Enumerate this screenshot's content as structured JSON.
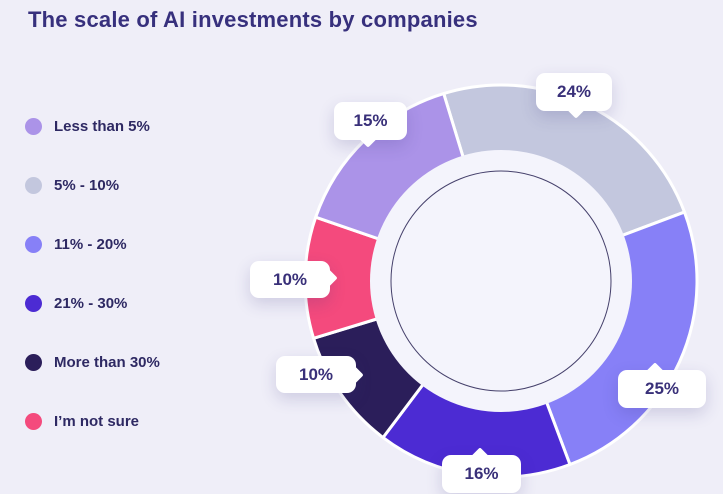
{
  "chart_data": {
    "type": "donut",
    "title": "The scale of AI investments by companies",
    "unit": "%",
    "legend_position": "left",
    "start_angle_deg": -17,
    "clockwise_order_from_top": [
      "5-10",
      "11-20",
      "21-30",
      "more-30",
      "not-sure",
      "less-5"
    ],
    "donut_hole_ratio": 0.67,
    "segments": [
      {
        "id": "less-5",
        "label": "Less than 5%",
        "value": 15,
        "color": "#ab93e8",
        "callout": "15%"
      },
      {
        "id": "5-10",
        "label": "5% - 10%",
        "value": 24,
        "color": "#c3c7de",
        "callout": "24%"
      },
      {
        "id": "11-20",
        "label": "11% - 20%",
        "value": 25,
        "color": "#8780f7",
        "callout": "25%"
      },
      {
        "id": "21-30",
        "label": "21% - 30%",
        "value": 16,
        "color": "#4c2bd3",
        "callout": "16%"
      },
      {
        "id": "more-30",
        "label": "More than 30%",
        "value": 10,
        "color": "#2b1e5a",
        "callout": "10%"
      },
      {
        "id": "not-sure",
        "label": "I’m not sure",
        "value": 10,
        "color": "#f44a7d",
        "callout": "10%"
      }
    ],
    "palette": {
      "background": "#efeef8",
      "title_text": "#37307d",
      "legend_text": "#2e2963",
      "callout_text": "#393079",
      "hole_fill": "#f4f4fc",
      "inner_guide_stroke": "#45406b",
      "segment_separator": "#ffffff"
    }
  }
}
